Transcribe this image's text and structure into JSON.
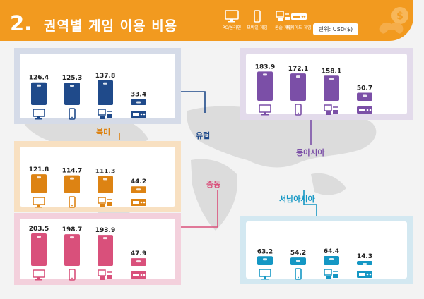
{
  "header": {
    "section_number": "2.",
    "title": "권역별 게임 이용 비용",
    "unit_label": "단위: USD($)",
    "legend": [
      {
        "icon": "pc-monitor-icon",
        "label": "PC/온라인"
      },
      {
        "icon": "mobile-phone-icon",
        "label": "모바일 게임"
      },
      {
        "icon": "console-icon",
        "label": "콘솔 게임"
      },
      {
        "icon": "arcade-icon",
        "label": "아케이드 게임"
      }
    ],
    "watermark_icon": "dollar-gamepad-icon"
  },
  "colors": {
    "header": "#f29a1f",
    "north_america": "#1f4a8a",
    "europe": "#1f4a8a",
    "east_asia": "#7b4fa7",
    "latin_america": "#dd8313",
    "middle_east": "#d9507b",
    "southeast_asia": "#1497c4"
  },
  "chart_data": [
    {
      "type": "bar",
      "region": "북미",
      "categories": [
        "PC/온라인",
        "모바일 게임",
        "콘솔 게임",
        "아케이드 게임"
      ],
      "values": [
        126.4,
        125.3,
        137.8,
        33.4
      ],
      "labels": [
        "126.4",
        "125.3",
        "137.8",
        "33.4"
      ],
      "color": "#1f4a8a"
    },
    {
      "type": "bar",
      "region": "동아시아",
      "categories": [
        "PC/온라인",
        "모바일 게임",
        "콘솔 게임",
        "아케이드 게임"
      ],
      "values": [
        183.9,
        172.1,
        158.1,
        50.7
      ],
      "labels": [
        "183.9",
        "172.1",
        "158.1",
        "50.7"
      ],
      "color": "#7b4fa7"
    },
    {
      "type": "bar",
      "region": "유럽",
      "categories": [
        "PC/온라인",
        "모바일 게임",
        "콘솔 게임",
        "아케이드 게임"
      ],
      "values": [
        121.8,
        114.7,
        111.3,
        44.2
      ],
      "labels": [
        "121.8",
        "114.7",
        "111.3",
        "44.2"
      ],
      "color": "#dd8313"
    },
    {
      "type": "bar",
      "region": "중동",
      "categories": [
        "PC/온라인",
        "모바일 게임",
        "콘솔 게임",
        "아케이드 게임"
      ],
      "values": [
        203.5,
        198.7,
        193.9,
        47.9
      ],
      "labels": [
        "203.5",
        "198.7",
        "193.9",
        "47.9"
      ],
      "color": "#d9507b"
    },
    {
      "type": "bar",
      "region": "서남아시아",
      "categories": [
        "PC/온라인",
        "모바일 게임",
        "콘솔 게임",
        "아케이드 게임"
      ],
      "values": [
        63.2,
        54.2,
        64.4,
        14.3
      ],
      "labels": [
        "63.2",
        "54.2",
        "64.4",
        "14.3"
      ],
      "color": "#1497c4"
    }
  ],
  "region_labels": {
    "north_america": "북미",
    "europe": "유럽",
    "east_asia": "동아시아",
    "middle_east": "중동",
    "southeast_asia": "서남아시아"
  }
}
